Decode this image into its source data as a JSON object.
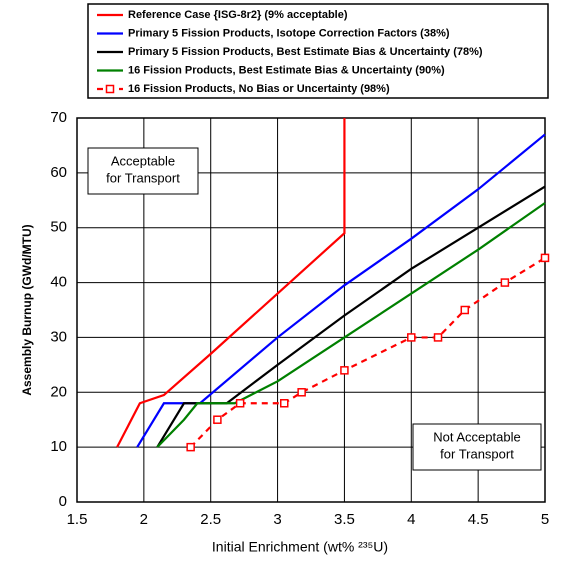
{
  "chart_data": {
    "type": "line",
    "x_label": "Initial Enrichment (wt% ²³⁵U)",
    "y_label": "Assembly Burnup (GWd/MTU)",
    "xlim": [
      1.5,
      5
    ],
    "ylim": [
      0,
      70
    ],
    "xticks": [
      1.5,
      2,
      2.5,
      3,
      3.5,
      4,
      4.5,
      5
    ],
    "yticks": [
      0,
      10,
      20,
      30,
      40,
      50,
      60,
      70
    ],
    "grid": true,
    "annotations": [
      [
        "Acceptable",
        "for Transport"
      ],
      [
        "Not Acceptable",
        "for Transport"
      ]
    ],
    "series": [
      {
        "name": "Reference Case {ISG-8r2}  (9% acceptable)",
        "color": "#ff0000",
        "dashed": false,
        "x": [
          1.8,
          1.97,
          2.15,
          2.5,
          3,
          3.5,
          3.5
        ],
        "values": [
          10,
          18,
          19.5,
          27,
          38,
          49,
          70
        ]
      },
      {
        "name": "Primary 5 Fission Products, Isotope Correction Factors (38%)",
        "color": "#0000ff",
        "dashed": false,
        "x": [
          1.95,
          2.15,
          2.42,
          3,
          3.5,
          4,
          4.5,
          5
        ],
        "values": [
          10,
          18,
          18,
          30,
          39.5,
          48,
          57,
          67
        ]
      },
      {
        "name": "Primary 5 Fission Products, Best Estimate Bias & Uncertainty (78%)",
        "color": "#000000",
        "dashed": false,
        "x": [
          2.1,
          2.3,
          2.62,
          3,
          3.5,
          4,
          4.5,
          5
        ],
        "values": [
          10,
          18,
          18,
          25,
          34,
          42.5,
          50,
          57.5
        ]
      },
      {
        "name": "16 Fission Products, Best Estimate Bias & Uncertainty (90%)",
        "color": "#008000",
        "dashed": false,
        "x": [
          2.1,
          2.3,
          2.4,
          2.68,
          3,
          3.5,
          4,
          4.5,
          5
        ],
        "values": [
          10,
          15,
          18,
          18,
          22,
          30,
          38,
          46,
          54.5
        ]
      },
      {
        "name": "16 Fission Products, No Bias or Uncertainty (98%)",
        "color": "#ff0000",
        "dashed": true,
        "x": [
          2.35,
          2.55,
          2.72,
          3.05,
          3.18,
          3.5,
          4,
          4.2,
          4.4,
          4.7,
          5
        ],
        "values": [
          10,
          15,
          18,
          18,
          20,
          24,
          30,
          30,
          35,
          40,
          44.5
        ]
      }
    ]
  }
}
